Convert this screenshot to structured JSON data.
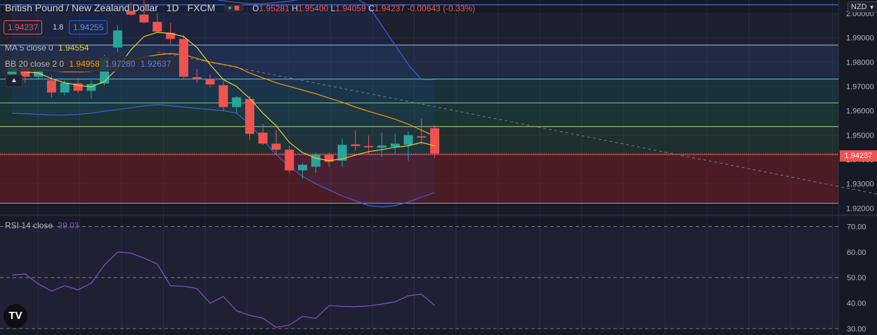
{
  "header": {
    "symbol": "British Pound / New Zealand Dollar",
    "interval": "1D",
    "source": "FXCM",
    "o_label": "O",
    "o_val": "1.95281",
    "h_label": "H",
    "h_val": "1.95400",
    "l_label": "L",
    "l_val": "1.94059",
    "c_label": "C",
    "c_val": "1.94237",
    "change": "-0.00643 (-0.33%)",
    "currency": "NZD"
  },
  "trade": {
    "sell": "1.94237",
    "spread": "1.8",
    "buy": "1.94255"
  },
  "indicators": {
    "ma_label": "MA 5 close 0",
    "ma_val": "1.94554",
    "bb_label": "BB 20 close 2 0",
    "bb_mid": "1.94958",
    "bb_up": "1.97280",
    "bb_low": "1.92637",
    "rsi_label": "RSI 14 close",
    "rsi_val": "39.03"
  },
  "colors": {
    "background": "#161a25",
    "up": "#26a69a",
    "down": "#ef5350",
    "ma": "#e8d12e",
    "bb_mid": "#ff9800",
    "bb_band": "#3f5fd6",
    "rsi": "#7e57c2",
    "price_tag": "#ef5350"
  },
  "icons": {
    "collapse": "chevron-up-icon",
    "logo": "tradingview-logo-icon"
  },
  "chart_data": [
    {
      "type": "candlestick",
      "title": "British Pound / New Zealand Dollar",
      "ylim": [
        1.9175,
        2.0055
      ],
      "yticks": [
        "2.00000",
        "1.99000",
        "1.98000",
        "1.97000",
        "1.96000",
        "1.95000",
        "1.94000",
        "1.93000",
        "1.92000"
      ],
      "last_price_label": "1.94237",
      "candles": [
        {
          "o": 1.975,
          "h": 1.9795,
          "l": 1.9705,
          "c": 1.978
        },
        {
          "o": 1.9778,
          "h": 1.98,
          "l": 1.9715,
          "c": 1.974
        },
        {
          "o": 1.974,
          "h": 1.9772,
          "l": 1.973,
          "c": 1.9765
        },
        {
          "o": 1.9725,
          "h": 1.9745,
          "l": 1.9655,
          "c": 1.9675
        },
        {
          "o": 1.9675,
          "h": 1.9725,
          "l": 1.9663,
          "c": 1.9715
        },
        {
          "o": 1.9712,
          "h": 1.9735,
          "l": 1.9672,
          "c": 1.9682
        },
        {
          "o": 1.9682,
          "h": 1.9725,
          "l": 1.965,
          "c": 1.971
        },
        {
          "o": 1.9712,
          "h": 1.983,
          "l": 1.9705,
          "c": 1.982
        },
        {
          "o": 1.986,
          "h": 1.995,
          "l": 1.984,
          "c": 1.993
        },
        {
          "o": 2.001,
          "h": 2.0045,
          "l": 1.999,
          "c": 1.9995
        },
        {
          "o": 1.9995,
          "h": 2.0055,
          "l": 1.996,
          "c": 1.9963
        },
        {
          "o": 1.9965,
          "h": 2.0,
          "l": 1.9922,
          "c": 1.9925
        },
        {
          "o": 1.992,
          "h": 1.996,
          "l": 1.9875,
          "c": 1.9895
        },
        {
          "o": 1.9895,
          "h": 1.9912,
          "l": 1.973,
          "c": 1.974
        },
        {
          "o": 1.9738,
          "h": 1.9772,
          "l": 1.9715,
          "c": 1.9732
        },
        {
          "o": 1.973,
          "h": 1.975,
          "l": 1.9695,
          "c": 1.9708
        },
        {
          "o": 1.9705,
          "h": 1.9722,
          "l": 1.96,
          "c": 1.9615
        },
        {
          "o": 1.9615,
          "h": 1.966,
          "l": 1.959,
          "c": 1.9655
        },
        {
          "o": 1.9648,
          "h": 1.9662,
          "l": 1.948,
          "c": 1.9505
        },
        {
          "o": 1.951,
          "h": 1.9545,
          "l": 1.946,
          "c": 1.9465
        },
        {
          "o": 1.9465,
          "h": 1.952,
          "l": 1.942,
          "c": 1.944
        },
        {
          "o": 1.944,
          "h": 1.9455,
          "l": 1.9345,
          "c": 1.9355
        },
        {
          "o": 1.9355,
          "h": 1.9385,
          "l": 1.932,
          "c": 1.9378
        },
        {
          "o": 1.937,
          "h": 1.9428,
          "l": 1.9345,
          "c": 1.942
        },
        {
          "o": 1.942,
          "h": 1.943,
          "l": 1.937,
          "c": 1.939
        },
        {
          "o": 1.9395,
          "h": 1.9485,
          "l": 1.937,
          "c": 1.946
        },
        {
          "o": 1.9462,
          "h": 1.952,
          "l": 1.9435,
          "c": 1.9455
        },
        {
          "o": 1.9455,
          "h": 1.9498,
          "l": 1.942,
          "c": 1.945
        },
        {
          "o": 1.9448,
          "h": 1.951,
          "l": 1.941,
          "c": 1.9457
        },
        {
          "o": 1.9452,
          "h": 1.9505,
          "l": 1.9425,
          "c": 1.9465
        },
        {
          "o": 1.946,
          "h": 1.9515,
          "l": 1.9395,
          "c": 1.95
        },
        {
          "o": 1.9495,
          "h": 1.9568,
          "l": 1.946,
          "c": 1.949
        },
        {
          "o": 1.95281,
          "h": 1.954,
          "l": 1.94059,
          "c": 1.94237
        }
      ],
      "ma5": [
        1.977,
        1.976,
        1.9755,
        1.9732,
        1.9715,
        1.9705,
        1.9698,
        1.972,
        1.9775,
        1.985,
        1.9905,
        1.9922,
        1.9918,
        1.9905,
        1.986,
        1.979,
        1.9728,
        1.97,
        1.965,
        1.959,
        1.9538,
        1.947,
        1.9428,
        1.9405,
        1.9395,
        1.9402,
        1.9418,
        1.9432,
        1.944,
        1.945,
        1.9456,
        1.947,
        1.94554
      ],
      "bb_mid": [
        1.9775,
        1.9772,
        1.977,
        1.9765,
        1.976,
        1.976,
        1.9762,
        1.977,
        1.9785,
        1.9805,
        1.982,
        1.983,
        1.9835,
        1.983,
        1.9815,
        1.98,
        1.979,
        1.978,
        1.9755,
        1.9735,
        1.9715,
        1.97,
        1.9685,
        1.967,
        1.9652,
        1.9635,
        1.9615,
        1.9598,
        1.9582,
        1.9565,
        1.9545,
        1.952,
        1.94958
      ],
      "bb_upper": [
        2.01,
        2.01,
        2.01,
        2.01,
        2.01,
        2.01,
        2.01,
        2.01,
        2.01,
        2.01,
        2.01,
        2.01,
        2.009,
        2.0085,
        2.0075,
        2.006,
        2.0052,
        2.0045,
        2.004,
        2.004,
        2.0045,
        2.005,
        2.006,
        2.007,
        2.0075,
        2.007,
        2.0065,
        2.003,
        1.995,
        1.987,
        1.979,
        1.9728,
        1.9728
      ],
      "bb_lower": [
        1.959,
        1.9588,
        1.9585,
        1.9582,
        1.9582,
        1.9585,
        1.959,
        1.9598,
        1.9605,
        1.9612,
        1.962,
        1.9625,
        1.962,
        1.9615,
        1.961,
        1.9605,
        1.96,
        1.959,
        1.9545,
        1.948,
        1.942,
        1.937,
        1.933,
        1.93,
        1.9275,
        1.925,
        1.923,
        1.921,
        1.9205,
        1.921,
        1.9225,
        1.9245,
        1.92637
      ],
      "horizontal_levels": [
        1.987,
        1.973,
        1.9632,
        1.9535,
        1.942,
        1.922
      ],
      "trendline": {
        "from": [
          11,
          1.9842
        ],
        "to": [
          69,
          1.922
        ]
      }
    },
    {
      "type": "line",
      "title": "RSI 14 close",
      "ylim": [
        27.5,
        74
      ],
      "yticks": [
        "70.00",
        "60.00",
        "50.00",
        "40.00",
        "30.00"
      ],
      "levels": [
        70,
        50,
        30
      ],
      "values": [
        51.0,
        51.4,
        47.5,
        44.7,
        46.8,
        45.2,
        47.8,
        54.9,
        60.0,
        59.6,
        57.6,
        55.3,
        46.8,
        46.6,
        45.7,
        39.9,
        42.6,
        37.0,
        35.2,
        34.1,
        30.5,
        31.4,
        34.8,
        34.0,
        39.0,
        38.7,
        38.6,
        38.9,
        39.6,
        40.5,
        42.9,
        43.5,
        39.03
      ]
    }
  ]
}
